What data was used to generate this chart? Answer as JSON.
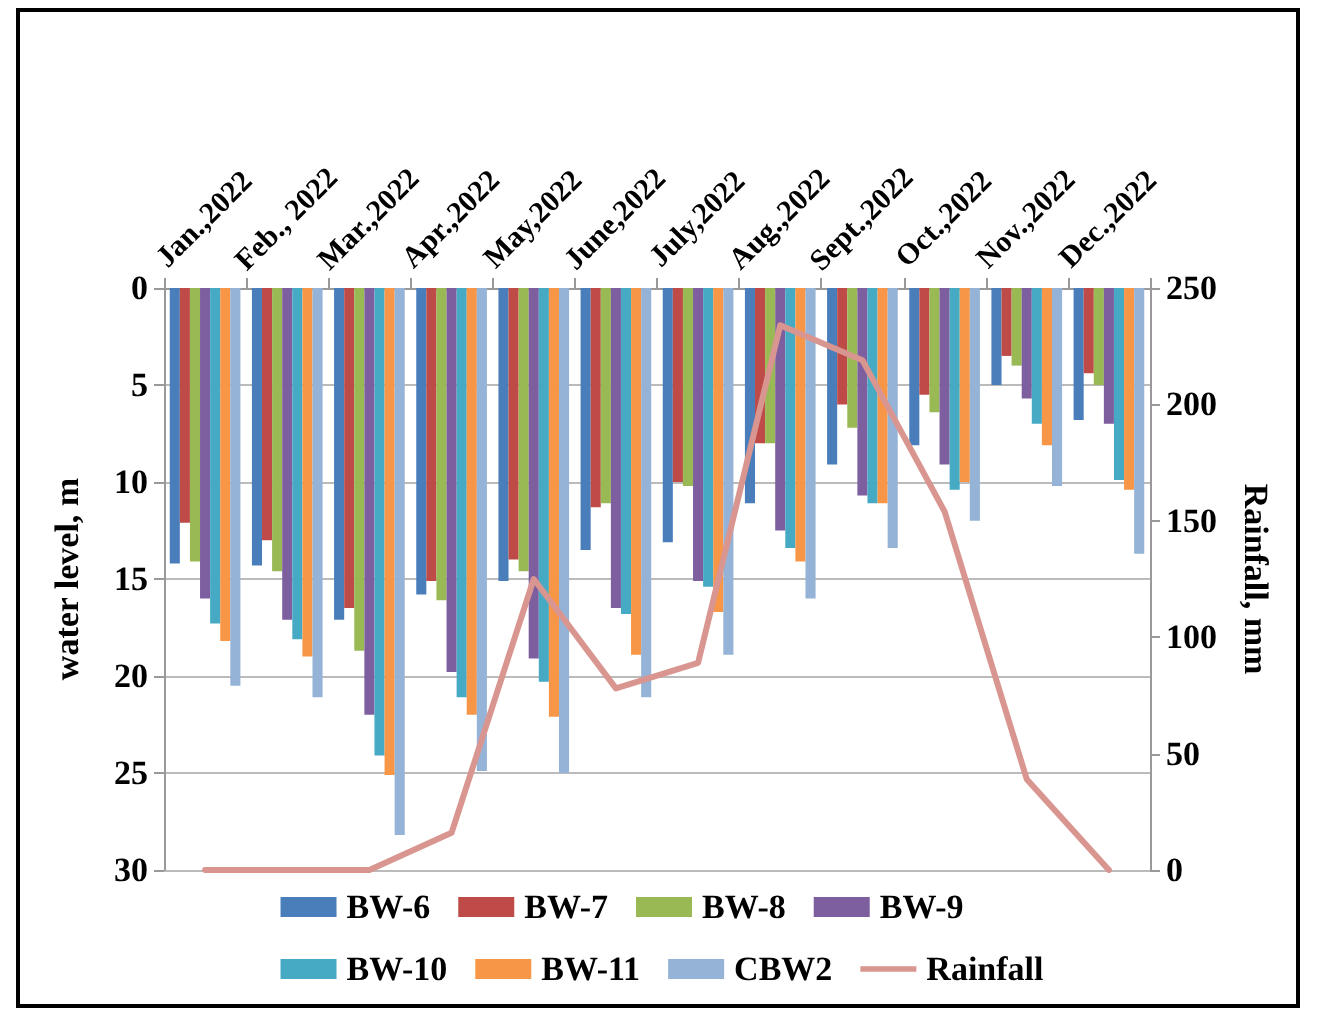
{
  "chart_data": {
    "type": "bar",
    "ylabel": "water level, m",
    "y2label": "Rainfall, mm",
    "categories": [
      "Jan.,2022",
      "Feb., 2022",
      "Mar.,2022",
      "Apr.,2022",
      "May,2022",
      "June,2022",
      "July,2022",
      "Aug.,2022",
      "Sept.,2022",
      "Oct.,2022",
      "Nov.,2022",
      "Dec.,2022"
    ],
    "series": [
      {
        "name": "BW-6",
        "color": "#4a7ebb",
        "values": [
          14.2,
          14.3,
          17.1,
          15.8,
          15.1,
          13.5,
          13.1,
          11.1,
          9.1,
          8.1,
          5.0,
          6.8
        ]
      },
      {
        "name": "BW-7",
        "color": "#be4b48",
        "values": [
          12.1,
          13.0,
          16.5,
          15.1,
          14.0,
          11.3,
          10.0,
          8.0,
          6.0,
          5.5,
          3.5,
          4.4
        ]
      },
      {
        "name": "BW-8",
        "color": "#98b954",
        "values": [
          14.1,
          14.6,
          18.7,
          16.1,
          14.6,
          11.1,
          10.2,
          8.0,
          7.2,
          6.4,
          4.0,
          5.0
        ]
      },
      {
        "name": "BW-9",
        "color": "#7d5fa0",
        "values": [
          16.0,
          17.1,
          22.0,
          19.8,
          19.1,
          16.5,
          15.1,
          12.5,
          10.7,
          9.1,
          5.7,
          7.0
        ]
      },
      {
        "name": "BW-10",
        "color": "#46aac5",
        "values": [
          17.3,
          18.1,
          24.1,
          21.1,
          20.3,
          16.8,
          15.4,
          13.4,
          11.1,
          10.4,
          7.0,
          9.9
        ]
      },
      {
        "name": "BW-11",
        "color": "#f79646",
        "values": [
          18.2,
          19.0,
          25.1,
          22.0,
          22.1,
          18.9,
          16.7,
          14.1,
          11.1,
          10.0,
          8.1,
          10.4
        ]
      },
      {
        "name": "CBW2",
        "color": "#95b3d7",
        "values": [
          20.5,
          21.1,
          28.2,
          24.9,
          25.0,
          21.1,
          18.9,
          16.0,
          13.4,
          12.0,
          10.2,
          13.7
        ]
      },
      {
        "name": "Rainfall",
        "type": "line",
        "axis": "y2",
        "color": "#d9958f",
        "values": [
          0,
          0,
          0,
          16,
          125,
          78,
          89,
          234,
          219,
          154,
          39,
          0
        ]
      }
    ],
    "ylim": [
      30,
      0
    ],
    "yticks": [
      0,
      5,
      10,
      15,
      20,
      25,
      30
    ],
    "y2lim": [
      0,
      250
    ],
    "y2ticks": [
      0,
      50,
      100,
      150,
      200,
      250
    ],
    "grid": "y",
    "legend": "bottom",
    "marker": "none",
    "line_style": "solid"
  }
}
